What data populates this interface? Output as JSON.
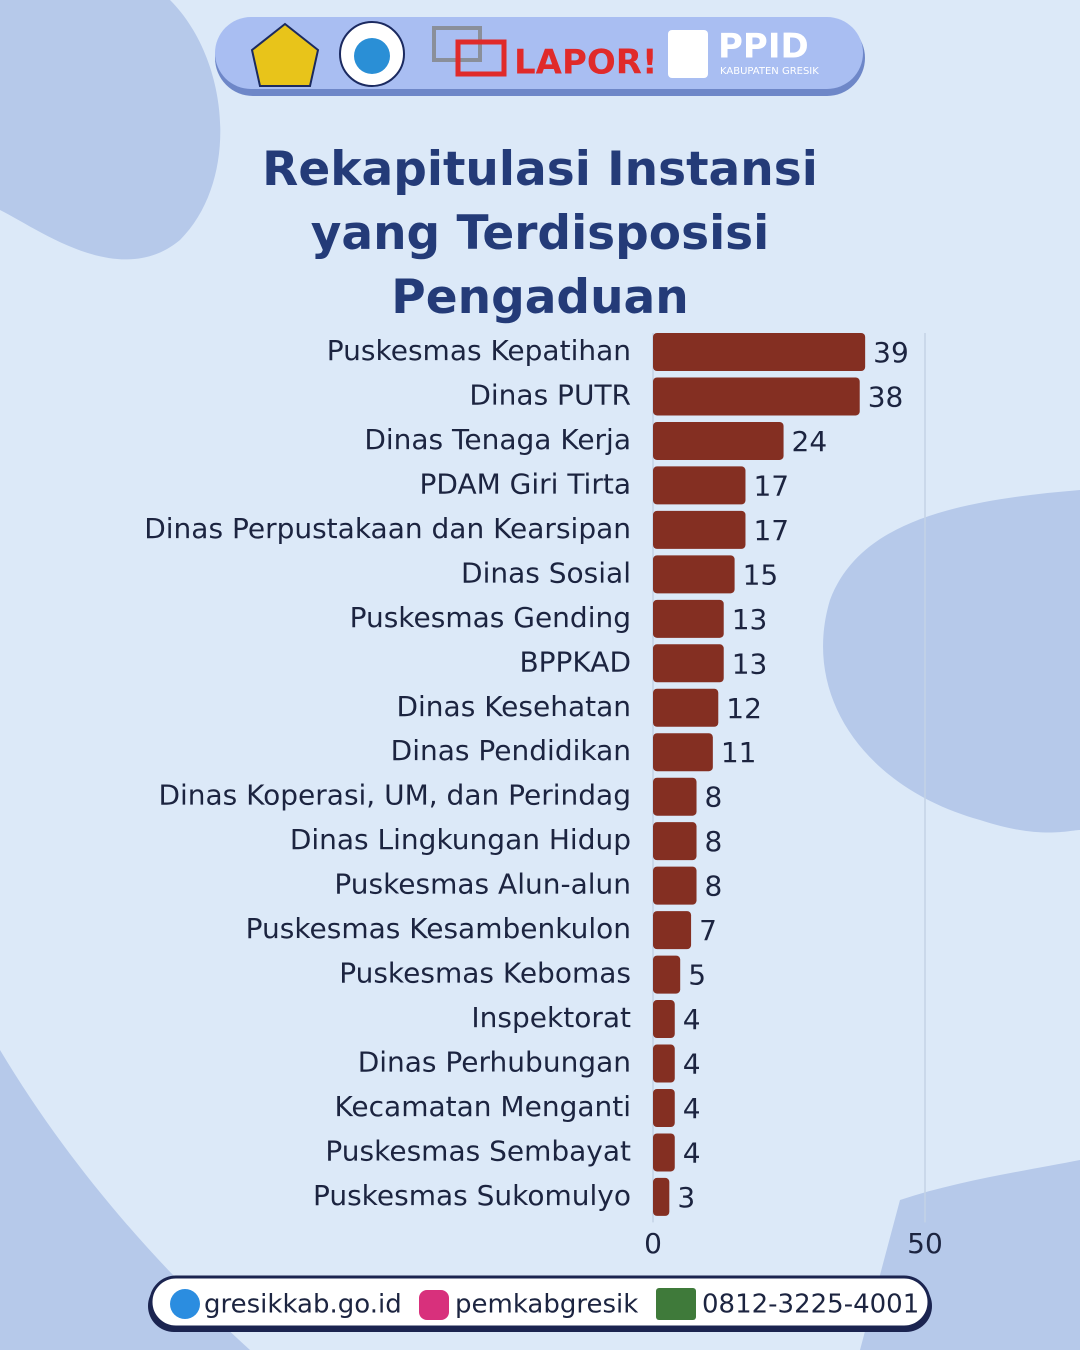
{
  "header": {
    "lapor": "LAPOR!",
    "ppid": "PPID",
    "ppid_sub": "KABUPATEN GRESIK"
  },
  "chart_data": {
    "type": "barh",
    "title": "Rekapitulasi Instansi yang Terdisposisi Pengaduan",
    "categories": [
      "Puskesmas Kepatihan",
      "Dinas PUTR",
      "Dinas Tenaga Kerja",
      "PDAM Giri Tirta",
      "Dinas Perpustakaan dan Kearsipan",
      "Dinas Sosial",
      "Puskesmas Gending",
      "BPPKAD",
      "Dinas Kesehatan",
      "Dinas Pendidikan",
      "Dinas Koperasi, UM, dan Perindag",
      "Dinas Lingkungan Hidup",
      "Puskesmas Alun-alun",
      "Puskesmas Kesambenkulon",
      "Puskesmas Kebomas",
      "Inspektorat",
      "Dinas Perhubungan",
      "Kecamatan Menganti",
      "Puskesmas Sembayat",
      "Puskesmas Sukomulyo"
    ],
    "values": [
      39,
      38,
      24,
      17,
      17,
      15,
      13,
      13,
      12,
      11,
      8,
      8,
      8,
      7,
      5,
      4,
      4,
      4,
      4,
      3
    ],
    "color": "#842f22",
    "xlim": [
      0,
      50
    ],
    "xticks": [
      0,
      50
    ],
    "grid": true
  },
  "footer": {
    "website": "gresikkab.go.id",
    "instagram": "pemkabgresik",
    "phone": "0812-3225-4001"
  }
}
